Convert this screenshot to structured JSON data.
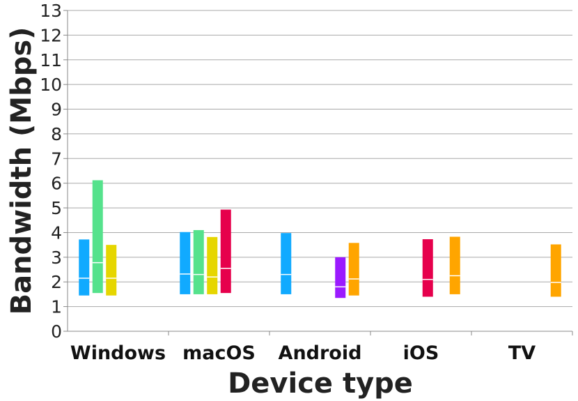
{
  "chart_data": {
    "type": "bar",
    "subtype": "floating range bars with median mark",
    "title": "",
    "xlabel": "Device type",
    "ylabel": "Bandwidth (Mbps)",
    "ylim": [
      0,
      13
    ],
    "yticks": [
      0,
      1,
      2,
      3,
      4,
      5,
      6,
      7,
      8,
      9,
      10,
      11,
      12,
      13
    ],
    "grid": true,
    "legend": "none",
    "categories": [
      "Windows",
      "macOS",
      "Android",
      "iOS",
      "TV"
    ],
    "series": [
      {
        "color": "#11aaff",
        "values": [
          {
            "low": 1.45,
            "median": 2.15,
            "high": 3.72
          },
          {
            "low": 1.5,
            "median": 2.32,
            "high": 4.02
          },
          {
            "low": 1.5,
            "median": 2.3,
            "high": 3.98
          },
          null,
          null
        ]
      },
      {
        "color": "#55e28c",
        "values": [
          {
            "low": 1.55,
            "median": 2.78,
            "high": 6.12
          },
          {
            "low": 1.5,
            "median": 2.3,
            "high": 4.1
          },
          null,
          null,
          null
        ]
      },
      {
        "color": "#e6d600",
        "values": [
          {
            "low": 1.45,
            "median": 2.15,
            "high": 3.5
          },
          {
            "low": 1.5,
            "median": 2.2,
            "high": 3.82
          },
          null,
          null,
          null
        ]
      },
      {
        "color": "#e6004c",
        "values": [
          null,
          {
            "low": 1.55,
            "median": 2.55,
            "high": 4.93
          },
          null,
          {
            "low": 1.4,
            "median": 2.1,
            "high": 3.73
          },
          null
        ]
      },
      {
        "color": "#9b1aff",
        "values": [
          null,
          null,
          {
            "low": 1.35,
            "median": 1.8,
            "high": 3.0
          },
          null,
          null
        ]
      },
      {
        "color": "#ffa500",
        "values": [
          null,
          null,
          {
            "low": 1.45,
            "median": 2.12,
            "high": 3.58
          },
          {
            "low": 1.5,
            "median": 2.25,
            "high": 3.83
          },
          {
            "low": 1.4,
            "median": 1.98,
            "high": 3.52
          }
        ]
      }
    ]
  }
}
